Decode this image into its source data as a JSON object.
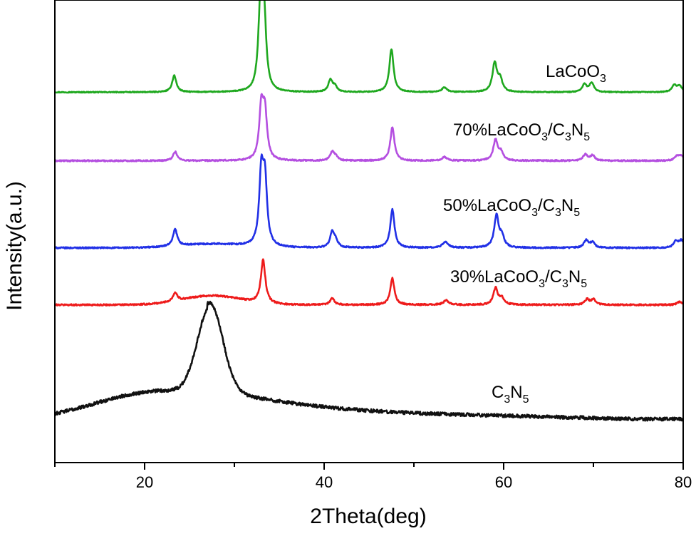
{
  "chart_data": {
    "type": "line",
    "xlabel": "2Theta(deg)",
    "ylabel": "Intensity(a.u.)",
    "xlim": [
      10,
      80
    ],
    "xticks": [
      20,
      40,
      60,
      80
    ],
    "yticks": [],
    "grid": false,
    "legend": "none",
    "series": [
      {
        "key": "lacoo3",
        "label_parts": [
          {
            "t": "LaCoO"
          },
          {
            "t": "3",
            "sub": true
          }
        ],
        "color": "#1fa81f",
        "baseline": 1.0,
        "noise": 0.06,
        "broad": [],
        "peaks": [
          [
            23.3,
            2.2,
            0.28
          ],
          [
            32.9,
            10.6,
            0.28
          ],
          [
            33.3,
            9.8,
            0.28
          ],
          [
            40.7,
            1.6,
            0.28
          ],
          [
            41.2,
            0.7,
            0.28
          ],
          [
            47.5,
            5.7,
            0.28
          ],
          [
            53.4,
            0.6,
            0.35
          ],
          [
            59.0,
            3.8,
            0.3
          ],
          [
            59.6,
            1.6,
            0.3
          ],
          [
            69.0,
            1.0,
            0.3
          ],
          [
            69.8,
            1.2,
            0.3
          ],
          [
            79.0,
            0.9,
            0.3
          ],
          [
            79.6,
            0.8,
            0.3
          ]
        ]
      },
      {
        "key": "lacoo3-70",
        "label_parts": [
          {
            "t": "70%LaCoO"
          },
          {
            "t": "3",
            "sub": true
          },
          {
            "t": "/C"
          },
          {
            "t": "3",
            "sub": true
          },
          {
            "t": "N"
          },
          {
            "t": "5",
            "sub": true
          }
        ],
        "color": "#b44fe0",
        "baseline": 0.7,
        "noise": 0.09,
        "broad": [],
        "peaks": [
          [
            23.4,
            1.2,
            0.28
          ],
          [
            33.0,
            6.7,
            0.28
          ],
          [
            33.4,
            6.0,
            0.28
          ],
          [
            40.9,
            1.1,
            0.28
          ],
          [
            41.3,
            0.5,
            0.28
          ],
          [
            47.6,
            4.4,
            0.28
          ],
          [
            53.4,
            0.5,
            0.35
          ],
          [
            59.1,
            2.7,
            0.3
          ],
          [
            59.7,
            1.0,
            0.3
          ],
          [
            69.1,
            0.8,
            0.3
          ],
          [
            69.9,
            0.7,
            0.3
          ],
          [
            79.3,
            0.6,
            0.3
          ],
          [
            79.8,
            0.6,
            0.3
          ]
        ]
      },
      {
        "key": "lacoo3-50",
        "label_parts": [
          {
            "t": "50%LaCoO"
          },
          {
            "t": "3",
            "sub": true
          },
          {
            "t": "/C"
          },
          {
            "t": "3",
            "sub": true
          },
          {
            "t": "N"
          },
          {
            "t": "5",
            "sub": true
          }
        ],
        "color": "#2130e6",
        "baseline": 0.4,
        "noise": 0.09,
        "broad": [
          [
            27.5,
            0.5,
            3.5
          ]
        ],
        "peaks": [
          [
            23.4,
            2.2,
            0.28
          ],
          [
            33.0,
            9.2,
            0.28
          ],
          [
            33.4,
            8.3,
            0.28
          ],
          [
            40.9,
            2.0,
            0.28
          ],
          [
            41.3,
            0.8,
            0.28
          ],
          [
            47.6,
            5.1,
            0.28
          ],
          [
            53.5,
            0.8,
            0.35
          ],
          [
            59.2,
            4.2,
            0.3
          ],
          [
            59.8,
            1.4,
            0.3
          ],
          [
            69.2,
            1.0,
            0.3
          ],
          [
            69.9,
            0.7,
            0.3
          ],
          [
            79.2,
            0.9,
            0.3
          ],
          [
            79.8,
            0.9,
            0.3
          ]
        ]
      },
      {
        "key": "lacoo3-30",
        "label_parts": [
          {
            "t": "30%LaCoO"
          },
          {
            "t": "3",
            "sub": true
          },
          {
            "t": "/C"
          },
          {
            "t": "3",
            "sub": true
          },
          {
            "t": "N"
          },
          {
            "t": "5",
            "sub": true
          }
        ],
        "color": "#ee1b1b",
        "baseline": 0.5,
        "noise": 0.1,
        "broad": [
          [
            27.5,
            1.2,
            3.2
          ]
        ],
        "peaks": [
          [
            23.4,
            1.1,
            0.3
          ],
          [
            33.2,
            5.7,
            0.3
          ],
          [
            40.9,
            0.9,
            0.28
          ],
          [
            47.6,
            3.5,
            0.28
          ],
          [
            53.6,
            0.6,
            0.35
          ],
          [
            59.1,
            2.2,
            0.3
          ],
          [
            59.8,
            0.8,
            0.3
          ],
          [
            69.3,
            0.7,
            0.3
          ],
          [
            70.0,
            0.7,
            0.3
          ],
          [
            79.6,
            0.4,
            0.3
          ]
        ]
      },
      {
        "key": "c3n5",
        "label_parts": [
          {
            "t": "C"
          },
          {
            "t": "3",
            "sub": true
          },
          {
            "t": "N"
          },
          {
            "t": "5",
            "sub": true
          }
        ],
        "color": "#111111",
        "baseline": 0.0,
        "noise": 0.22,
        "broad": [
          [
            27.3,
            11.5,
            1.4
          ],
          [
            20.0,
            1.9,
            6.0
          ],
          [
            27.0,
            1.6,
            9.0
          ]
        ],
        "peaks": []
      }
    ]
  }
}
